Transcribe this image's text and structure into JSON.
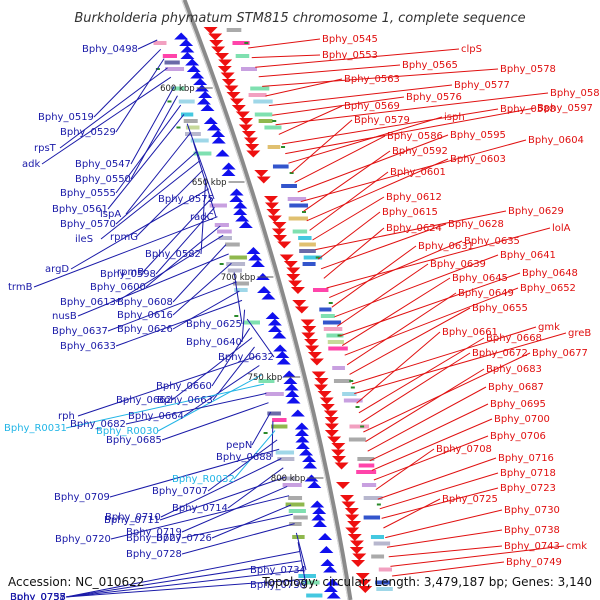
{
  "title": "Burkholderia phymatum STM815 chromosome 1, complete sequence",
  "footer": {
    "accession": "Accession: NC_010622",
    "topology": "Topology: circular; Length: 3,479,187 bp; Genes: 3,140"
  },
  "colors": {
    "left_label": "#1a1aa8",
    "right_label": "#e01010",
    "rna_label": "#22b5e6",
    "forward_arrow": "#1010ee",
    "reverse_arrow": "#ee1010",
    "backbone": "#8a8a8a",
    "tick": "#2a8a2a"
  },
  "scale_labels": [
    "600 kbp",
    "650 kbp",
    "700 kbp",
    "750 kbp",
    "800 kbp"
  ],
  "left_labels": [
    {
      "text": "Bphy_0498",
      "kind": "gene"
    },
    {
      "text": "Bphy_0519",
      "kind": "gene"
    },
    {
      "text": "Bphy_0529",
      "kind": "gene"
    },
    {
      "text": "rpsT",
      "kind": "gene"
    },
    {
      "text": "adk",
      "kind": "gene"
    },
    {
      "text": "Bphy_0547",
      "kind": "gene"
    },
    {
      "text": "Bphy_0550",
      "kind": "gene"
    },
    {
      "text": "Bphy_0555",
      "kind": "gene"
    },
    {
      "text": "Bphy_0561",
      "kind": "gene"
    },
    {
      "text": "Bphy_0575",
      "kind": "gene"
    },
    {
      "text": "lspA",
      "kind": "gene"
    },
    {
      "text": "radC",
      "kind": "gene"
    },
    {
      "text": "Bphy_0570",
      "kind": "gene"
    },
    {
      "text": "ileS",
      "kind": "gene"
    },
    {
      "text": "rpmG",
      "kind": "gene"
    },
    {
      "text": "Bphy_0582",
      "kind": "gene"
    },
    {
      "text": "argD",
      "kind": "gene"
    },
    {
      "text": "rpmB",
      "kind": "gene"
    },
    {
      "text": "Bphy_0598",
      "kind": "gene"
    },
    {
      "text": "trmB",
      "kind": "gene"
    },
    {
      "text": "Bphy_0600",
      "kind": "gene"
    },
    {
      "text": "Bphy_0613",
      "kind": "gene"
    },
    {
      "text": "Bphy_0608",
      "kind": "gene"
    },
    {
      "text": "nusB",
      "kind": "gene"
    },
    {
      "text": "Bphy_0616",
      "kind": "gene"
    },
    {
      "text": "Bphy_0625",
      "kind": "gene"
    },
    {
      "text": "Bphy_0637",
      "kind": "gene"
    },
    {
      "text": "Bphy_0626",
      "kind": "gene"
    },
    {
      "text": "Bphy_0633",
      "kind": "gene"
    },
    {
      "text": "Bphy_0640",
      "kind": "gene"
    },
    {
      "text": "Bphy_0632",
      "kind": "gene"
    },
    {
      "text": "Bphy_0660",
      "kind": "gene"
    },
    {
      "text": "Bphy_0662",
      "kind": "gene"
    },
    {
      "text": "Bphy_0663",
      "kind": "gene"
    },
    {
      "text": "rph",
      "kind": "gene"
    },
    {
      "text": "Bphy_0664",
      "kind": "gene"
    },
    {
      "text": "Bphy_R0030",
      "kind": "rna"
    },
    {
      "text": "Bphy_R0031",
      "kind": "rna"
    },
    {
      "text": "Bphy_0682",
      "kind": "gene"
    },
    {
      "text": "Bphy_0685",
      "kind": "gene"
    },
    {
      "text": "pepN",
      "kind": "gene"
    },
    {
      "text": "Bphy_0688",
      "kind": "gene"
    },
    {
      "text": "Bphy_R0032",
      "kind": "rna"
    },
    {
      "text": "Bphy_0707",
      "kind": "gene"
    },
    {
      "text": "Bphy_0709",
      "kind": "gene"
    },
    {
      "text": "Bphy_0710",
      "kind": "gene"
    },
    {
      "text": "Bphy_0714",
      "kind": "gene"
    },
    {
      "text": "Bphy_0711",
      "kind": "gene"
    },
    {
      "text": "Bphy_0719",
      "kind": "gene"
    },
    {
      "text": "Bphy_0720",
      "kind": "gene"
    },
    {
      "text": "Bphy_0726",
      "kind": "gene"
    },
    {
      "text": "Bphy_0727",
      "kind": "gene"
    },
    {
      "text": "Bphy_0728",
      "kind": "gene"
    },
    {
      "text": "Bphy_0734",
      "kind": "gene"
    },
    {
      "text": "Bphy_0736",
      "kind": "gene"
    },
    {
      "text": "Bphy_0735",
      "kind": "gene"
    },
    {
      "text": "Bphy_0737",
      "kind": "gene"
    },
    {
      "text": "Bphy_0755",
      "kind": "gene"
    },
    {
      "text": "Bphy_0758",
      "kind": "gene"
    }
  ],
  "right_labels": [
    {
      "text": "Bphy_0545"
    },
    {
      "text": "Bphy_0553"
    },
    {
      "text": "clpS"
    },
    {
      "text": "Bphy_0565"
    },
    {
      "text": "Bphy_0578"
    },
    {
      "text": "Bphy_0563"
    },
    {
      "text": "Bphy_0577"
    },
    {
      "text": "Bphy_0576"
    },
    {
      "text": "Bphy_0589"
    },
    {
      "text": "Bphy_0569"
    },
    {
      "text": "Bphy_0588"
    },
    {
      "text": "Bphy_0597"
    },
    {
      "text": "isph"
    },
    {
      "text": "Bphy_0579"
    },
    {
      "text": "Bphy_0586"
    },
    {
      "text": "Bphy_0595"
    },
    {
      "text": "Bphy_0604"
    },
    {
      "text": "Bphy_0592"
    },
    {
      "text": "Bphy_0603"
    },
    {
      "text": "Bphy_0601"
    },
    {
      "text": "Bphy_0612"
    },
    {
      "text": "Bphy_0629"
    },
    {
      "text": "Bphy_0615"
    },
    {
      "text": "Bphy_0628"
    },
    {
      "text": "Bphy_0624"
    },
    {
      "text": "lolA"
    },
    {
      "text": "Bphy_0635"
    },
    {
      "text": "Bphy_0631"
    },
    {
      "text": "Bphy_0641"
    },
    {
      "text": "Bphy_0639"
    },
    {
      "text": "Bphy_0648"
    },
    {
      "text": "Bphy_0645"
    },
    {
      "text": "Bphy_0652"
    },
    {
      "text": "Bphy_0649"
    },
    {
      "text": "Bphy_0655"
    },
    {
      "text": "gmk"
    },
    {
      "text": "greB"
    },
    {
      "text": "Bphy_0661"
    },
    {
      "text": "Bphy_0668"
    },
    {
      "text": "Bphy_0672"
    },
    {
      "text": "Bphy_0677"
    },
    {
      "text": "Bphy_0683"
    },
    {
      "text": "Bphy_0687"
    },
    {
      "text": "Bphy_0695"
    },
    {
      "text": "Bphy_0700"
    },
    {
      "text": "Bphy_0706"
    },
    {
      "text": "Bphy_0708"
    },
    {
      "text": "Bphy_0716"
    },
    {
      "text": "Bphy_0718"
    },
    {
      "text": "Bphy_0723"
    },
    {
      "text": "Bphy_0725"
    },
    {
      "text": "Bphy_0730"
    },
    {
      "text": "Bphy_0738"
    },
    {
      "text": "Bphy_0743"
    },
    {
      "text": "cmk"
    },
    {
      "text": "Bphy_0749"
    }
  ]
}
